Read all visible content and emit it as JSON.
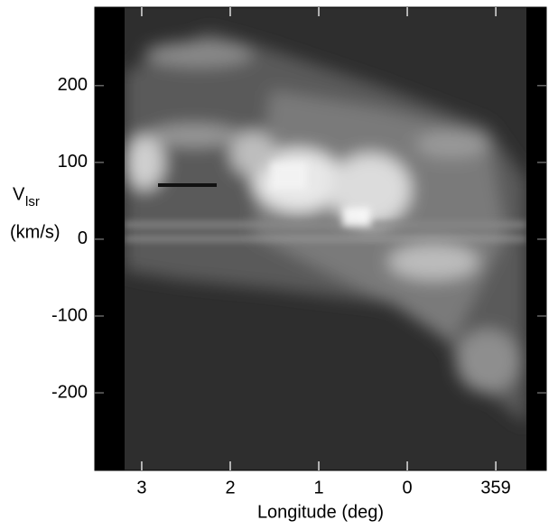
{
  "chart_data": {
    "type": "image",
    "xlabel": "Longitude (deg)",
    "ylabel_symbol": "V",
    "ylabel_subscript": "lsr",
    "ylabel_unit": "(km/s)",
    "xlim": [
      3.53,
      -1.57
    ],
    "xticks": [
      3,
      2,
      1,
      0,
      {
        "value": -1,
        "label": "359"
      }
    ],
    "ylim": [
      -301,
      302
    ],
    "yticks": [
      200,
      100,
      0,
      -100,
      -200
    ]
  }
}
